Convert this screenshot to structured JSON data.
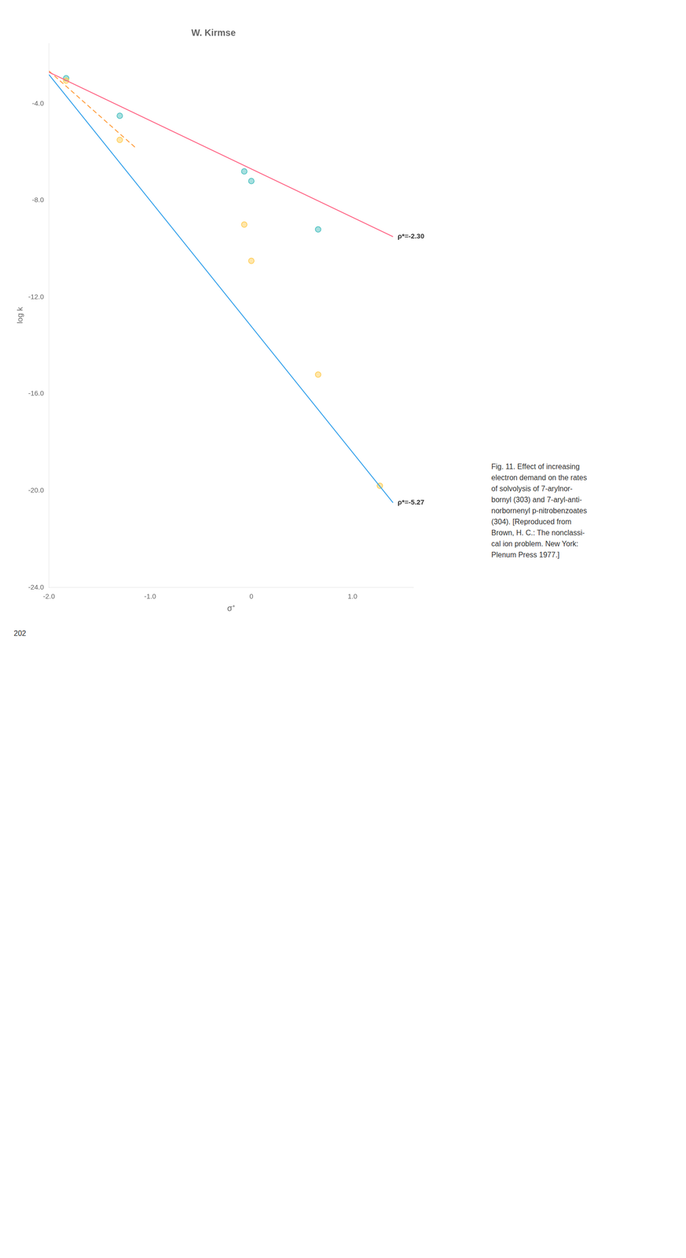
{
  "chart_data": {
    "type": "line",
    "title": "W. Kirmse",
    "x_label": "σ⁺",
    "y_label": "log k",
    "xlim": [
      -2.0,
      1.6
    ],
    "ylim": [
      -24.0,
      -1.5
    ],
    "xticks": [
      {
        "value": -2.0,
        "label": "-2.0"
      },
      {
        "value": -1.0,
        "label": "-1.0"
      },
      0,
      {
        "value": 1.0,
        "label": "1.0"
      }
    ],
    "yticks": [
      {
        "value": -24.0,
        "label": "-24.0"
      },
      {
        "value": -20.0,
        "label": "-20.0"
      },
      {
        "value": -16.0,
        "label": "-16.0"
      },
      {
        "value": -12.0,
        "label": "-12.0"
      },
      {
        "value": -8.0,
        "label": "-8.0"
      },
      {
        "value": -4.0,
        "label": "-4.0"
      }
    ],
    "grid": false,
    "series": [
      {
        "type": "line",
        "line_style": "solid",
        "label": "ρ*=-5.27",
        "x": [
          -2.0,
          1.4
        ],
        "values": [
          -2.8,
          -20.5
        ]
      },
      {
        "type": "line",
        "line_style": "solid",
        "label": "ρ*=-2.30",
        "x": [
          -2.0,
          1.4
        ],
        "values": [
          -2.7,
          -9.5
        ]
      },
      {
        "type": "line",
        "line_style": "dashed",
        "x": [
          -2.0,
          -1.15
        ],
        "values": [
          -2.65,
          -5.8
        ]
      },
      {
        "type": "scatter",
        "marker": "circle",
        "x": [
          -1.83,
          -1.3,
          -0.07,
          0.0,
          0.66,
          1.27
        ],
        "values": [
          -3.05,
          -5.5,
          -9.0,
          -10.5,
          -15.2,
          -19.8
        ]
      },
      {
        "type": "scatter",
        "marker": "circle",
        "x": [
          -1.83,
          -1.3,
          -0.07,
          0.0,
          0.66
        ],
        "values": [
          -2.95,
          -4.5,
          -6.8,
          -7.2,
          -9.2
        ]
      }
    ],
    "caption": [
      "Fig. 11. Effect of increasing",
      "electron demand on the rates",
      "of solvolysis of 7-arylnor-",
      "bornyl (303) and 7-aryl-anti-",
      "norbornenyl p-nitrobenzoates",
      "(304). [Reproduced from",
      "Brown, H. C.: The nonclassi-",
      "cal ion problem. New York:",
      "Plenum Press 1977.]"
    ],
    "page_number": "202"
  }
}
